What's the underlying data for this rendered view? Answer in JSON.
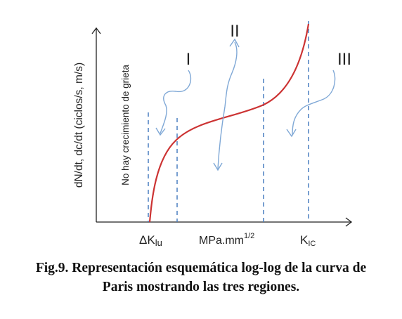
{
  "diagram": {
    "y_axis_label": "dN/dt, dc/dt (ciclos/s, m/s)",
    "no_growth_label": "No hay crecimiento de grieta",
    "region_labels": [
      "I",
      "II",
      "III"
    ],
    "x_ticks": {
      "delta_k_prefix": "ΔK",
      "delta_k_subscript": "lu",
      "units_main": "MPa.mm",
      "units_superscript": "1/2",
      "kic_main": "K",
      "kic_subscript": "IC"
    },
    "curve_color": "#cc3333",
    "dashed_color": "#4a7fc1",
    "arrow_color": "#7fa8d6"
  },
  "caption": {
    "line1": "Fig.9. Representación esquemática log-log de la curva de",
    "line2": "Paris mostrando las tres regiones."
  }
}
